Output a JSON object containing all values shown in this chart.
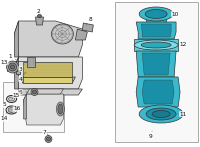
{
  "bg_color": "#ffffff",
  "teal": "#3ab8cc",
  "teal_dark": "#1a8fa8",
  "teal_mid": "#2aaabb",
  "gray_light": "#d0d0d0",
  "gray_mid": "#a8a8a8",
  "gray_dark": "#707070",
  "outline": "#333333",
  "label_color": "#111111",
  "box_stroke": "#999999",
  "lw": 0.5,
  "fs": 4.2
}
